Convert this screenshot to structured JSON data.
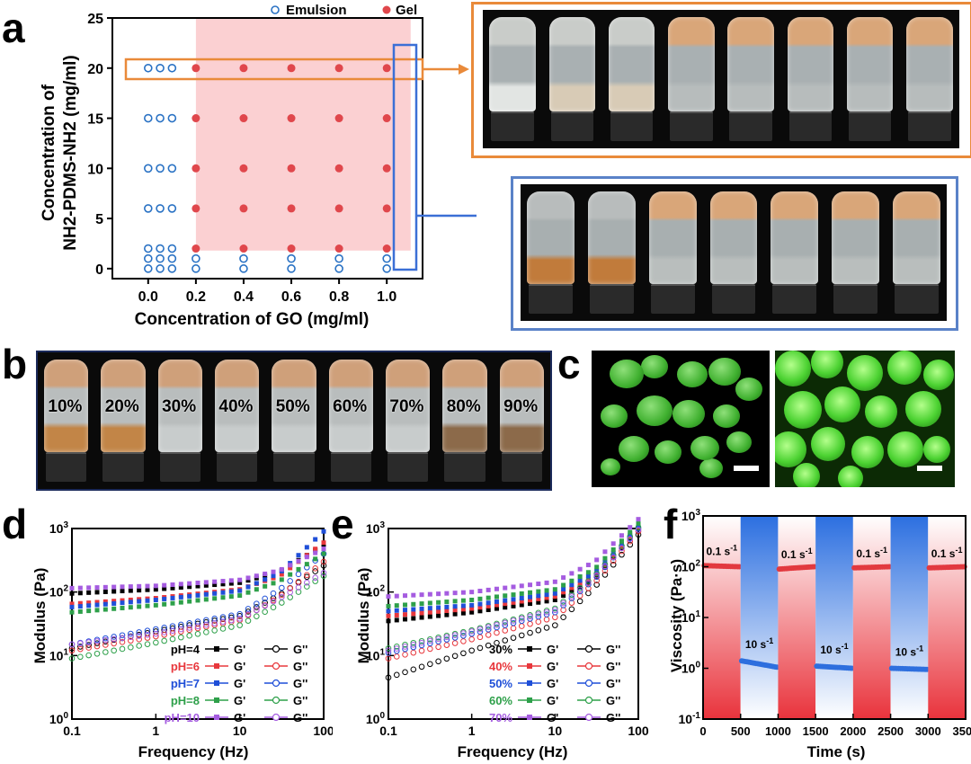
{
  "panels": {
    "a": "a",
    "b": "b",
    "c": "c",
    "d": "d",
    "e": "e",
    "f": "f"
  },
  "chart_data": [
    {
      "id": "a",
      "type": "scatter",
      "title": "",
      "xlabel": "Concentration of GO (mg/ml)",
      "ylabel_line1": "Concentration of",
      "ylabel_line2": "NH2-PDMS-NH2 (mg/ml)",
      "xlim": [
        -0.15,
        1.15
      ],
      "ylim": [
        -1,
        25
      ],
      "xticks": [
        "0.0",
        "0.2",
        "0.4",
        "0.6",
        "0.8",
        "1.0"
      ],
      "yticks": [
        "0",
        "5",
        "10",
        "15",
        "20",
        "25"
      ],
      "legend": {
        "emulsion": "Emulsion",
        "gel": "Gel"
      },
      "gel_region": {
        "x": [
          0.2,
          1.1
        ],
        "y": [
          1.8,
          25
        ]
      },
      "emulsion": [
        [
          0,
          0
        ],
        [
          0.05,
          0
        ],
        [
          0.1,
          0
        ],
        [
          0,
          1
        ],
        [
          0.05,
          1
        ],
        [
          0.1,
          1
        ],
        [
          0,
          2
        ],
        [
          0.05,
          2
        ],
        [
          0.1,
          2
        ],
        [
          0,
          6
        ],
        [
          0.05,
          6
        ],
        [
          0.1,
          6
        ],
        [
          0,
          10
        ],
        [
          0.05,
          10
        ],
        [
          0.1,
          10
        ],
        [
          0,
          15
        ],
        [
          0.05,
          15
        ],
        [
          0.1,
          15
        ],
        [
          0,
          20
        ],
        [
          0.05,
          20
        ],
        [
          0.1,
          20
        ],
        [
          0.2,
          0
        ],
        [
          0.2,
          1
        ],
        [
          0.4,
          0
        ],
        [
          0.4,
          1
        ],
        [
          0.6,
          0
        ],
        [
          0.6,
          1
        ],
        [
          0.8,
          0
        ],
        [
          0.8,
          1
        ],
        [
          1.0,
          0
        ],
        [
          1.0,
          1
        ]
      ],
      "gel": [
        [
          0.2,
          2
        ],
        [
          0.2,
          6
        ],
        [
          0.2,
          10
        ],
        [
          0.2,
          15
        ],
        [
          0.2,
          20
        ],
        [
          0.4,
          2
        ],
        [
          0.4,
          6
        ],
        [
          0.4,
          10
        ],
        [
          0.4,
          15
        ],
        [
          0.4,
          20
        ],
        [
          0.6,
          2
        ],
        [
          0.6,
          6
        ],
        [
          0.6,
          10
        ],
        [
          0.6,
          15
        ],
        [
          0.6,
          20
        ],
        [
          0.8,
          2
        ],
        [
          0.8,
          6
        ],
        [
          0.8,
          10
        ],
        [
          0.8,
          15
        ],
        [
          0.8,
          20
        ],
        [
          1.0,
          2
        ],
        [
          1.0,
          6
        ],
        [
          1.0,
          10
        ],
        [
          1.0,
          15
        ],
        [
          1.0,
          20
        ]
      ]
    },
    {
      "id": "d",
      "type": "line",
      "xlabel": "Frequency (Hz)",
      "ylabel": "Modulus (Pa)",
      "xscale": "log",
      "yscale": "log",
      "xlim": [
        0.1,
        100
      ],
      "ylim": [
        1,
        1000
      ],
      "xticks": [
        "0.1",
        "1",
        "10",
        "100"
      ],
      "yticks": [
        "10^0",
        "10^1",
        "10^2",
        "10^3"
      ],
      "legend_gp": "G'",
      "legend_gpp": "G''",
      "series": [
        {
          "name": "pH=4",
          "color": "#000000",
          "gp": [
            95,
            110,
            140,
            210,
            550
          ],
          "gpp": [
            13,
            24,
            42,
            90,
            260
          ]
        },
        {
          "name": "pH=6",
          "color": "#e8383d",
          "gp": [
            65,
            80,
            110,
            180,
            600
          ],
          "gpp": [
            12,
            20,
            36,
            85,
            300
          ]
        },
        {
          "name": "pH=7",
          "color": "#1f4fd8",
          "gp": [
            58,
            75,
            105,
            200,
            900
          ],
          "gpp": [
            15,
            26,
            45,
            110,
            400
          ]
        },
        {
          "name": "pH=8",
          "color": "#2ea04a",
          "gp": [
            48,
            62,
            88,
            150,
            400
          ],
          "gpp": [
            9,
            16,
            30,
            65,
            180
          ]
        },
        {
          "name": "pH=10",
          "color": "#a55ce0",
          "gp": [
            115,
            125,
            155,
            220,
            480
          ],
          "gpp": [
            15,
            22,
            38,
            80,
            200
          ]
        }
      ]
    },
    {
      "id": "e",
      "type": "line",
      "xlabel": "Frequency (Hz)",
      "ylabel": "Modulus (Pa)",
      "xscale": "log",
      "yscale": "log",
      "xlim": [
        0.1,
        100
      ],
      "ylim": [
        1,
        1000
      ],
      "xticks": [
        "0.1",
        "1",
        "10",
        "100"
      ],
      "yticks": [
        "10^0",
        "10^1",
        "10^2",
        "10^3"
      ],
      "legend_gp": "G'",
      "legend_gpp": "G''",
      "series": [
        {
          "name": "30%",
          "color": "#000000",
          "gp": [
            35,
            48,
            75,
            160,
            1000
          ],
          "gpp": [
            4.5,
            12,
            30,
            120,
            800
          ]
        },
        {
          "name": "40%",
          "color": "#e8383d",
          "gp": [
            42,
            55,
            85,
            180,
            1050
          ],
          "gpp": [
            9,
            18,
            40,
            140,
            900
          ]
        },
        {
          "name": "50%",
          "color": "#1f4fd8",
          "gp": [
            50,
            62,
            95,
            200,
            1100
          ],
          "gpp": [
            11,
            22,
            48,
            160,
            1000
          ]
        },
        {
          "name": "60%",
          "color": "#2ea04a",
          "gp": [
            60,
            75,
            110,
            230,
            1200
          ],
          "gpp": [
            13,
            25,
            55,
            180,
            1050
          ]
        },
        {
          "name": "70%",
          "color": "#a55ce0",
          "gp": [
            85,
            100,
            145,
            300,
            1400
          ],
          "gpp": [
            12,
            24,
            52,
            170,
            950
          ]
        }
      ]
    },
    {
      "id": "f",
      "type": "line",
      "xlabel": "Time (s)",
      "ylabel": "Viscosity (Pa·s)",
      "yscale": "log",
      "xlim": [
        0,
        3500
      ],
      "ylim": [
        0.1,
        1000
      ],
      "xticks": [
        "0",
        "500",
        "1000",
        "1500",
        "2000",
        "2500",
        "3000",
        "3500"
      ],
      "yticks": [
        "10^-1",
        "10^0",
        "10^1",
        "10^2",
        "10^3"
      ],
      "segments": [
        {
          "t": [
            0,
            500
          ],
          "shear": "low",
          "v": [
            105,
            100
          ]
        },
        {
          "t": [
            500,
            1000
          ],
          "shear": "high",
          "v": [
            1.4,
            1.05
          ]
        },
        {
          "t": [
            1000,
            1500
          ],
          "shear": "low",
          "v": [
            90,
            100
          ]
        },
        {
          "t": [
            1500,
            2000
          ],
          "shear": "high",
          "v": [
            1.1,
            1.0
          ]
        },
        {
          "t": [
            2000,
            2500
          ],
          "shear": "low",
          "v": [
            95,
            100
          ]
        },
        {
          "t": [
            2500,
            3000
          ],
          "shear": "high",
          "v": [
            1.0,
            0.95
          ]
        },
        {
          "t": [
            3000,
            3500
          ],
          "shear": "low",
          "v": [
            95,
            100
          ]
        }
      ],
      "low_label": "0.1 s-1",
      "high_label": "10 s-1"
    }
  ],
  "panel_b": {
    "labels": [
      "10%",
      "20%",
      "30%",
      "40%",
      "50%",
      "60%",
      "70%",
      "80%",
      "90%"
    ]
  }
}
